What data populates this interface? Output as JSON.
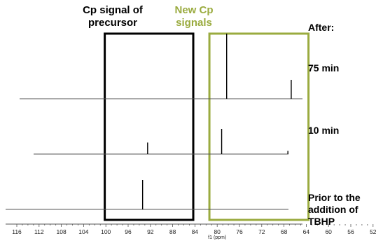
{
  "chart_data": {
    "type": "line",
    "xlabel": "f1 (ppm)",
    "x_reversed": true,
    "xlim": [
      116,
      51
    ],
    "x_ticks": [
      "116",
      "112",
      "108",
      "104",
      "100",
      "96",
      "92",
      "88",
      "84",
      "80",
      "76",
      "72",
      "68",
      "64",
      "60",
      "56",
      "52"
    ],
    "header": "After:",
    "series": [
      {
        "name": "75 min",
        "peaks": [
          {
            "ppm": 78.3,
            "height": 0.62
          },
          {
            "ppm": 66.7,
            "height": 0.18
          }
        ]
      },
      {
        "name": "10 min",
        "peaks": [
          {
            "ppm": 92.5,
            "height": 0.11
          },
          {
            "ppm": 79.2,
            "height": 0.24
          },
          {
            "ppm": 67.3,
            "height": 0.03
          }
        ]
      },
      {
        "name": "Prior to the addition of TBHP",
        "name_lines": [
          "Prior to the",
          "addition of TBHP"
        ],
        "peaks": [
          {
            "ppm": 93.4,
            "height": 0.28
          }
        ]
      }
    ],
    "annotations": [
      {
        "label_lines": [
          "Cp signal of",
          "precursor"
        ],
        "ppm_range": [
          100.2,
          84.3
        ],
        "color": "#000000"
      },
      {
        "label_lines": [
          "New Cp",
          "signals"
        ],
        "ppm_range": [
          81.4,
          63.6
        ],
        "color": "#9aab3f"
      }
    ]
  }
}
